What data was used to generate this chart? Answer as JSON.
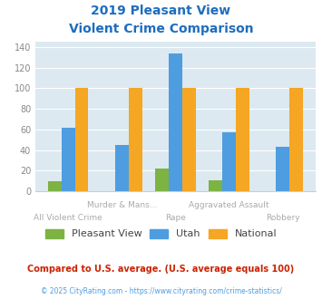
{
  "title_line1": "2019 Pleasant View",
  "title_line2": "Violent Crime Comparison",
  "title_color": "#1e6dbf",
  "categories": [
    "All Violent Crime",
    "Murder & Mans...",
    "Rape",
    "Aggravated Assault",
    "Robbery"
  ],
  "pleasant_view": [
    10,
    0,
    22,
    11,
    0
  ],
  "utah": [
    62,
    45,
    134,
    57,
    43
  ],
  "national": [
    100,
    100,
    100,
    100,
    100
  ],
  "color_pv": "#7cb342",
  "color_utah": "#4d9de0",
  "color_national": "#f5a623",
  "ylim": [
    0,
    145
  ],
  "yticks": [
    0,
    20,
    40,
    60,
    80,
    100,
    120,
    140
  ],
  "legend_labels": [
    "Pleasant View",
    "Utah",
    "National"
  ],
  "footnote1": "Compared to U.S. average. (U.S. average equals 100)",
  "footnote2": "© 2025 CityRating.com - https://www.cityrating.com/crime-statistics/",
  "footnote1_color": "#cc2200",
  "footnote2_color": "#4d9de0",
  "bg_color": "#dce9f0",
  "bar_width": 0.25,
  "upper_row_indices": [
    1,
    3
  ],
  "lower_row_indices": [
    0,
    2,
    4
  ],
  "label_color": "#aaaaaa"
}
